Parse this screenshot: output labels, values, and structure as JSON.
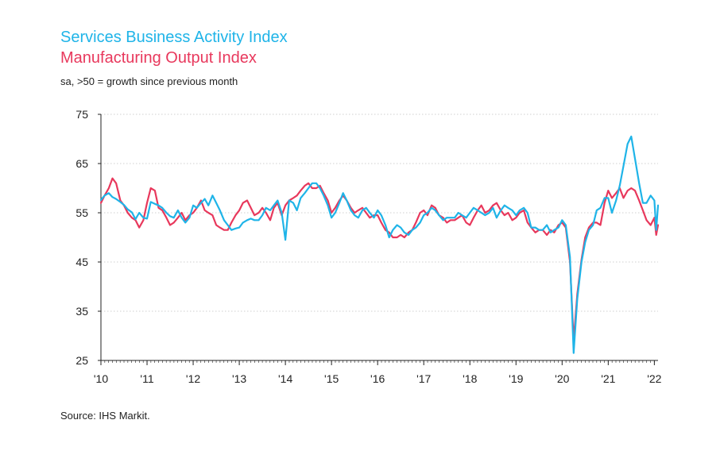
{
  "title_services": "Services Business Activity Index",
  "title_manufacturing": "Manufacturing Output Index",
  "subtitle": "sa, >50 = growth since previous month",
  "source": "Source: IHS Markit.",
  "chart_data": {
    "type": "line",
    "ylim": [
      25,
      75
    ],
    "yticks": [
      75,
      65,
      55,
      45,
      35,
      25
    ],
    "x_start_year": 2010,
    "x_end_year": 2022.08,
    "xtick_labels": [
      "'10",
      "'11",
      "'12",
      "'13",
      "'14",
      "'15",
      "'16",
      "'17",
      "'18",
      "'19",
      "'20",
      "'21",
      "'22"
    ],
    "xtick_years": [
      2010,
      2011,
      2012,
      2013,
      2014,
      2015,
      2016,
      2017,
      2018,
      2019,
      2020,
      2021,
      2022
    ],
    "series": [
      {
        "name": "Services Business Activity Index",
        "color": "#1fb4e8",
        "points": [
          [
            2010.0,
            57.6
          ],
          [
            2010.08,
            58.5
          ],
          [
            2010.17,
            59.0
          ],
          [
            2010.25,
            58.2
          ],
          [
            2010.33,
            57.8
          ],
          [
            2010.42,
            57.2
          ],
          [
            2010.5,
            56.6
          ],
          [
            2010.58,
            55.7
          ],
          [
            2010.67,
            55.1
          ],
          [
            2010.75,
            53.7
          ],
          [
            2010.83,
            55.0
          ],
          [
            2010.92,
            54.0
          ],
          [
            2011.0,
            53.8
          ],
          [
            2011.08,
            57.2
          ],
          [
            2011.17,
            56.8
          ],
          [
            2011.25,
            56.5
          ],
          [
            2011.33,
            56.0
          ],
          [
            2011.42,
            55.0
          ],
          [
            2011.5,
            54.3
          ],
          [
            2011.58,
            54.0
          ],
          [
            2011.67,
            55.5
          ],
          [
            2011.75,
            54.0
          ],
          [
            2011.83,
            53.0
          ],
          [
            2011.92,
            54.0
          ],
          [
            2012.0,
            56.5
          ],
          [
            2012.08,
            56.0
          ],
          [
            2012.17,
            57.0
          ],
          [
            2012.25,
            57.8
          ],
          [
            2012.33,
            56.5
          ],
          [
            2012.42,
            58.5
          ],
          [
            2012.5,
            57.0
          ],
          [
            2012.58,
            55.5
          ],
          [
            2012.67,
            53.5
          ],
          [
            2012.75,
            52.5
          ],
          [
            2012.83,
            51.5
          ],
          [
            2012.92,
            51.8
          ],
          [
            2013.0,
            52.0
          ],
          [
            2013.08,
            53.0
          ],
          [
            2013.17,
            53.5
          ],
          [
            2013.25,
            53.8
          ],
          [
            2013.33,
            53.5
          ],
          [
            2013.42,
            53.5
          ],
          [
            2013.5,
            54.5
          ],
          [
            2013.58,
            56.0
          ],
          [
            2013.67,
            55.5
          ],
          [
            2013.75,
            56.5
          ],
          [
            2013.83,
            57.5
          ],
          [
            2013.92,
            55.0
          ],
          [
            2014.0,
            49.5
          ],
          [
            2014.08,
            57.5
          ],
          [
            2014.17,
            57.0
          ],
          [
            2014.25,
            55.5
          ],
          [
            2014.33,
            58.0
          ],
          [
            2014.42,
            59.0
          ],
          [
            2014.5,
            60.0
          ],
          [
            2014.58,
            61.0
          ],
          [
            2014.67,
            61.0
          ],
          [
            2014.75,
            60.0
          ],
          [
            2014.83,
            58.5
          ],
          [
            2014.92,
            56.5
          ],
          [
            2015.0,
            54.0
          ],
          [
            2015.08,
            55.0
          ],
          [
            2015.17,
            57.0
          ],
          [
            2015.25,
            59.0
          ],
          [
            2015.33,
            57.5
          ],
          [
            2015.42,
            55.5
          ],
          [
            2015.5,
            54.5
          ],
          [
            2015.58,
            54.0
          ],
          [
            2015.67,
            55.5
          ],
          [
            2015.75,
            56.0
          ],
          [
            2015.83,
            55.0
          ],
          [
            2015.92,
            54.0
          ],
          [
            2016.0,
            55.5
          ],
          [
            2016.08,
            54.5
          ],
          [
            2016.17,
            52.5
          ],
          [
            2016.25,
            50.0
          ],
          [
            2016.33,
            51.5
          ],
          [
            2016.42,
            52.5
          ],
          [
            2016.5,
            52.0
          ],
          [
            2016.58,
            51.0
          ],
          [
            2016.67,
            50.5
          ],
          [
            2016.75,
            51.5
          ],
          [
            2016.83,
            52.0
          ],
          [
            2016.92,
            53.0
          ],
          [
            2017.0,
            54.5
          ],
          [
            2017.08,
            55.0
          ],
          [
            2017.17,
            56.0
          ],
          [
            2017.25,
            55.5
          ],
          [
            2017.33,
            54.5
          ],
          [
            2017.42,
            53.5
          ],
          [
            2017.5,
            54.0
          ],
          [
            2017.58,
            54.0
          ],
          [
            2017.67,
            54.0
          ],
          [
            2017.75,
            55.0
          ],
          [
            2017.83,
            54.5
          ],
          [
            2017.92,
            54.0
          ],
          [
            2018.0,
            55.0
          ],
          [
            2018.08,
            56.0
          ],
          [
            2018.17,
            55.5
          ],
          [
            2018.25,
            55.0
          ],
          [
            2018.33,
            54.5
          ],
          [
            2018.42,
            55.0
          ],
          [
            2018.5,
            56.0
          ],
          [
            2018.58,
            54.0
          ],
          [
            2018.67,
            55.5
          ],
          [
            2018.75,
            56.5
          ],
          [
            2018.83,
            56.0
          ],
          [
            2018.92,
            55.5
          ],
          [
            2019.0,
            54.5
          ],
          [
            2019.08,
            55.5
          ],
          [
            2019.17,
            56.0
          ],
          [
            2019.25,
            55.0
          ],
          [
            2019.33,
            52.0
          ],
          [
            2019.42,
            52.0
          ],
          [
            2019.5,
            51.5
          ],
          [
            2019.58,
            51.5
          ],
          [
            2019.67,
            52.5
          ],
          [
            2019.75,
            51.0
          ],
          [
            2019.83,
            51.5
          ],
          [
            2019.92,
            52.0
          ],
          [
            2020.0,
            53.5
          ],
          [
            2020.08,
            52.5
          ],
          [
            2020.17,
            46.0
          ],
          [
            2020.25,
            26.5
          ],
          [
            2020.33,
            37.5
          ],
          [
            2020.42,
            45.0
          ],
          [
            2020.5,
            49.0
          ],
          [
            2020.58,
            51.5
          ],
          [
            2020.67,
            52.5
          ],
          [
            2020.75,
            55.5
          ],
          [
            2020.83,
            56.0
          ],
          [
            2020.92,
            58.0
          ],
          [
            2021.0,
            58.0
          ],
          [
            2021.08,
            55.0
          ],
          [
            2021.17,
            57.5
          ],
          [
            2021.25,
            60.5
          ],
          [
            2021.33,
            64.5
          ],
          [
            2021.42,
            69.0
          ],
          [
            2021.5,
            70.5
          ],
          [
            2021.58,
            66.0
          ],
          [
            2021.67,
            61.0
          ],
          [
            2021.75,
            57.0
          ],
          [
            2021.83,
            57.0
          ],
          [
            2021.92,
            58.5
          ],
          [
            2022.0,
            57.5
          ],
          [
            2022.04,
            51.5
          ],
          [
            2022.08,
            56.5
          ]
        ]
      },
      {
        "name": "Manufacturing Output Index",
        "color": "#e8385c",
        "points": [
          [
            2010.0,
            57.0
          ],
          [
            2010.08,
            58.5
          ],
          [
            2010.17,
            60.0
          ],
          [
            2010.25,
            62.0
          ],
          [
            2010.33,
            61.0
          ],
          [
            2010.42,
            57.5
          ],
          [
            2010.5,
            56.5
          ],
          [
            2010.58,
            55.0
          ],
          [
            2010.67,
            54.0
          ],
          [
            2010.75,
            53.5
          ],
          [
            2010.83,
            52.0
          ],
          [
            2010.92,
            53.5
          ],
          [
            2011.0,
            57.0
          ],
          [
            2011.08,
            60.0
          ],
          [
            2011.17,
            59.5
          ],
          [
            2011.25,
            56.0
          ],
          [
            2011.33,
            55.5
          ],
          [
            2011.42,
            54.0
          ],
          [
            2011.5,
            52.5
          ],
          [
            2011.58,
            53.0
          ],
          [
            2011.67,
            54.0
          ],
          [
            2011.75,
            55.0
          ],
          [
            2011.83,
            53.5
          ],
          [
            2011.92,
            54.5
          ],
          [
            2012.0,
            55.0
          ],
          [
            2012.08,
            56.0
          ],
          [
            2012.17,
            57.5
          ],
          [
            2012.25,
            55.5
          ],
          [
            2012.33,
            55.0
          ],
          [
            2012.42,
            54.5
          ],
          [
            2012.5,
            52.5
          ],
          [
            2012.58,
            52.0
          ],
          [
            2012.67,
            51.5
          ],
          [
            2012.75,
            51.5
          ],
          [
            2012.83,
            53.0
          ],
          [
            2012.92,
            54.5
          ],
          [
            2013.0,
            55.5
          ],
          [
            2013.08,
            57.0
          ],
          [
            2013.17,
            57.5
          ],
          [
            2013.25,
            56.0
          ],
          [
            2013.33,
            54.5
          ],
          [
            2013.42,
            55.0
          ],
          [
            2013.5,
            56.0
          ],
          [
            2013.58,
            55.0
          ],
          [
            2013.67,
            53.5
          ],
          [
            2013.75,
            56.0
          ],
          [
            2013.83,
            57.0
          ],
          [
            2013.92,
            54.5
          ],
          [
            2014.0,
            56.5
          ],
          [
            2014.08,
            57.5
          ],
          [
            2014.17,
            58.0
          ],
          [
            2014.25,
            58.5
          ],
          [
            2014.33,
            59.5
          ],
          [
            2014.42,
            60.5
          ],
          [
            2014.5,
            61.0
          ],
          [
            2014.58,
            60.0
          ],
          [
            2014.67,
            60.0
          ],
          [
            2014.75,
            60.5
          ],
          [
            2014.83,
            59.0
          ],
          [
            2014.92,
            57.5
          ],
          [
            2015.0,
            55.0
          ],
          [
            2015.08,
            56.0
          ],
          [
            2015.17,
            57.5
          ],
          [
            2015.25,
            58.5
          ],
          [
            2015.33,
            57.5
          ],
          [
            2015.42,
            56.0
          ],
          [
            2015.5,
            55.0
          ],
          [
            2015.58,
            55.5
          ],
          [
            2015.67,
            56.0
          ],
          [
            2015.75,
            55.0
          ],
          [
            2015.83,
            54.0
          ],
          [
            2015.92,
            54.5
          ],
          [
            2016.0,
            54.5
          ],
          [
            2016.08,
            53.0
          ],
          [
            2016.17,
            51.5
          ],
          [
            2016.25,
            51.0
          ],
          [
            2016.33,
            50.0
          ],
          [
            2016.42,
            50.0
          ],
          [
            2016.5,
            50.5
          ],
          [
            2016.58,
            50.0
          ],
          [
            2016.67,
            51.0
          ],
          [
            2016.75,
            51.5
          ],
          [
            2016.83,
            53.0
          ],
          [
            2016.92,
            55.0
          ],
          [
            2017.0,
            55.5
          ],
          [
            2017.08,
            54.5
          ],
          [
            2017.17,
            56.5
          ],
          [
            2017.25,
            56.0
          ],
          [
            2017.33,
            54.5
          ],
          [
            2017.42,
            54.0
          ],
          [
            2017.5,
            53.0
          ],
          [
            2017.58,
            53.5
          ],
          [
            2017.67,
            53.5
          ],
          [
            2017.75,
            54.0
          ],
          [
            2017.83,
            54.5
          ],
          [
            2017.92,
            53.0
          ],
          [
            2018.0,
            52.5
          ],
          [
            2018.08,
            54.0
          ],
          [
            2018.17,
            55.5
          ],
          [
            2018.25,
            56.5
          ],
          [
            2018.33,
            55.0
          ],
          [
            2018.42,
            55.5
          ],
          [
            2018.5,
            56.5
          ],
          [
            2018.58,
            57.0
          ],
          [
            2018.67,
            55.5
          ],
          [
            2018.75,
            54.5
          ],
          [
            2018.83,
            55.0
          ],
          [
            2018.92,
            53.5
          ],
          [
            2019.0,
            54.0
          ],
          [
            2019.08,
            55.0
          ],
          [
            2019.17,
            55.5
          ],
          [
            2019.25,
            53.0
          ],
          [
            2019.33,
            52.0
          ],
          [
            2019.42,
            51.0
          ],
          [
            2019.5,
            51.5
          ],
          [
            2019.58,
            51.5
          ],
          [
            2019.67,
            50.5
          ],
          [
            2019.75,
            51.5
          ],
          [
            2019.83,
            51.0
          ],
          [
            2019.92,
            52.5
          ],
          [
            2020.0,
            53.0
          ],
          [
            2020.08,
            52.0
          ],
          [
            2020.17,
            45.0
          ],
          [
            2020.25,
            29.0
          ],
          [
            2020.33,
            38.5
          ],
          [
            2020.42,
            45.5
          ],
          [
            2020.5,
            50.0
          ],
          [
            2020.58,
            52.0
          ],
          [
            2020.67,
            53.0
          ],
          [
            2020.75,
            53.0
          ],
          [
            2020.83,
            52.5
          ],
          [
            2020.92,
            57.0
          ],
          [
            2021.0,
            59.5
          ],
          [
            2021.08,
            58.0
          ],
          [
            2021.17,
            59.0
          ],
          [
            2021.25,
            60.0
          ],
          [
            2021.33,
            58.0
          ],
          [
            2021.42,
            59.5
          ],
          [
            2021.5,
            60.0
          ],
          [
            2021.58,
            59.5
          ],
          [
            2021.67,
            57.5
          ],
          [
            2021.75,
            55.5
          ],
          [
            2021.83,
            53.5
          ],
          [
            2021.92,
            52.5
          ],
          [
            2022.0,
            54.0
          ],
          [
            2022.04,
            50.5
          ],
          [
            2022.08,
            52.5
          ]
        ]
      }
    ]
  }
}
